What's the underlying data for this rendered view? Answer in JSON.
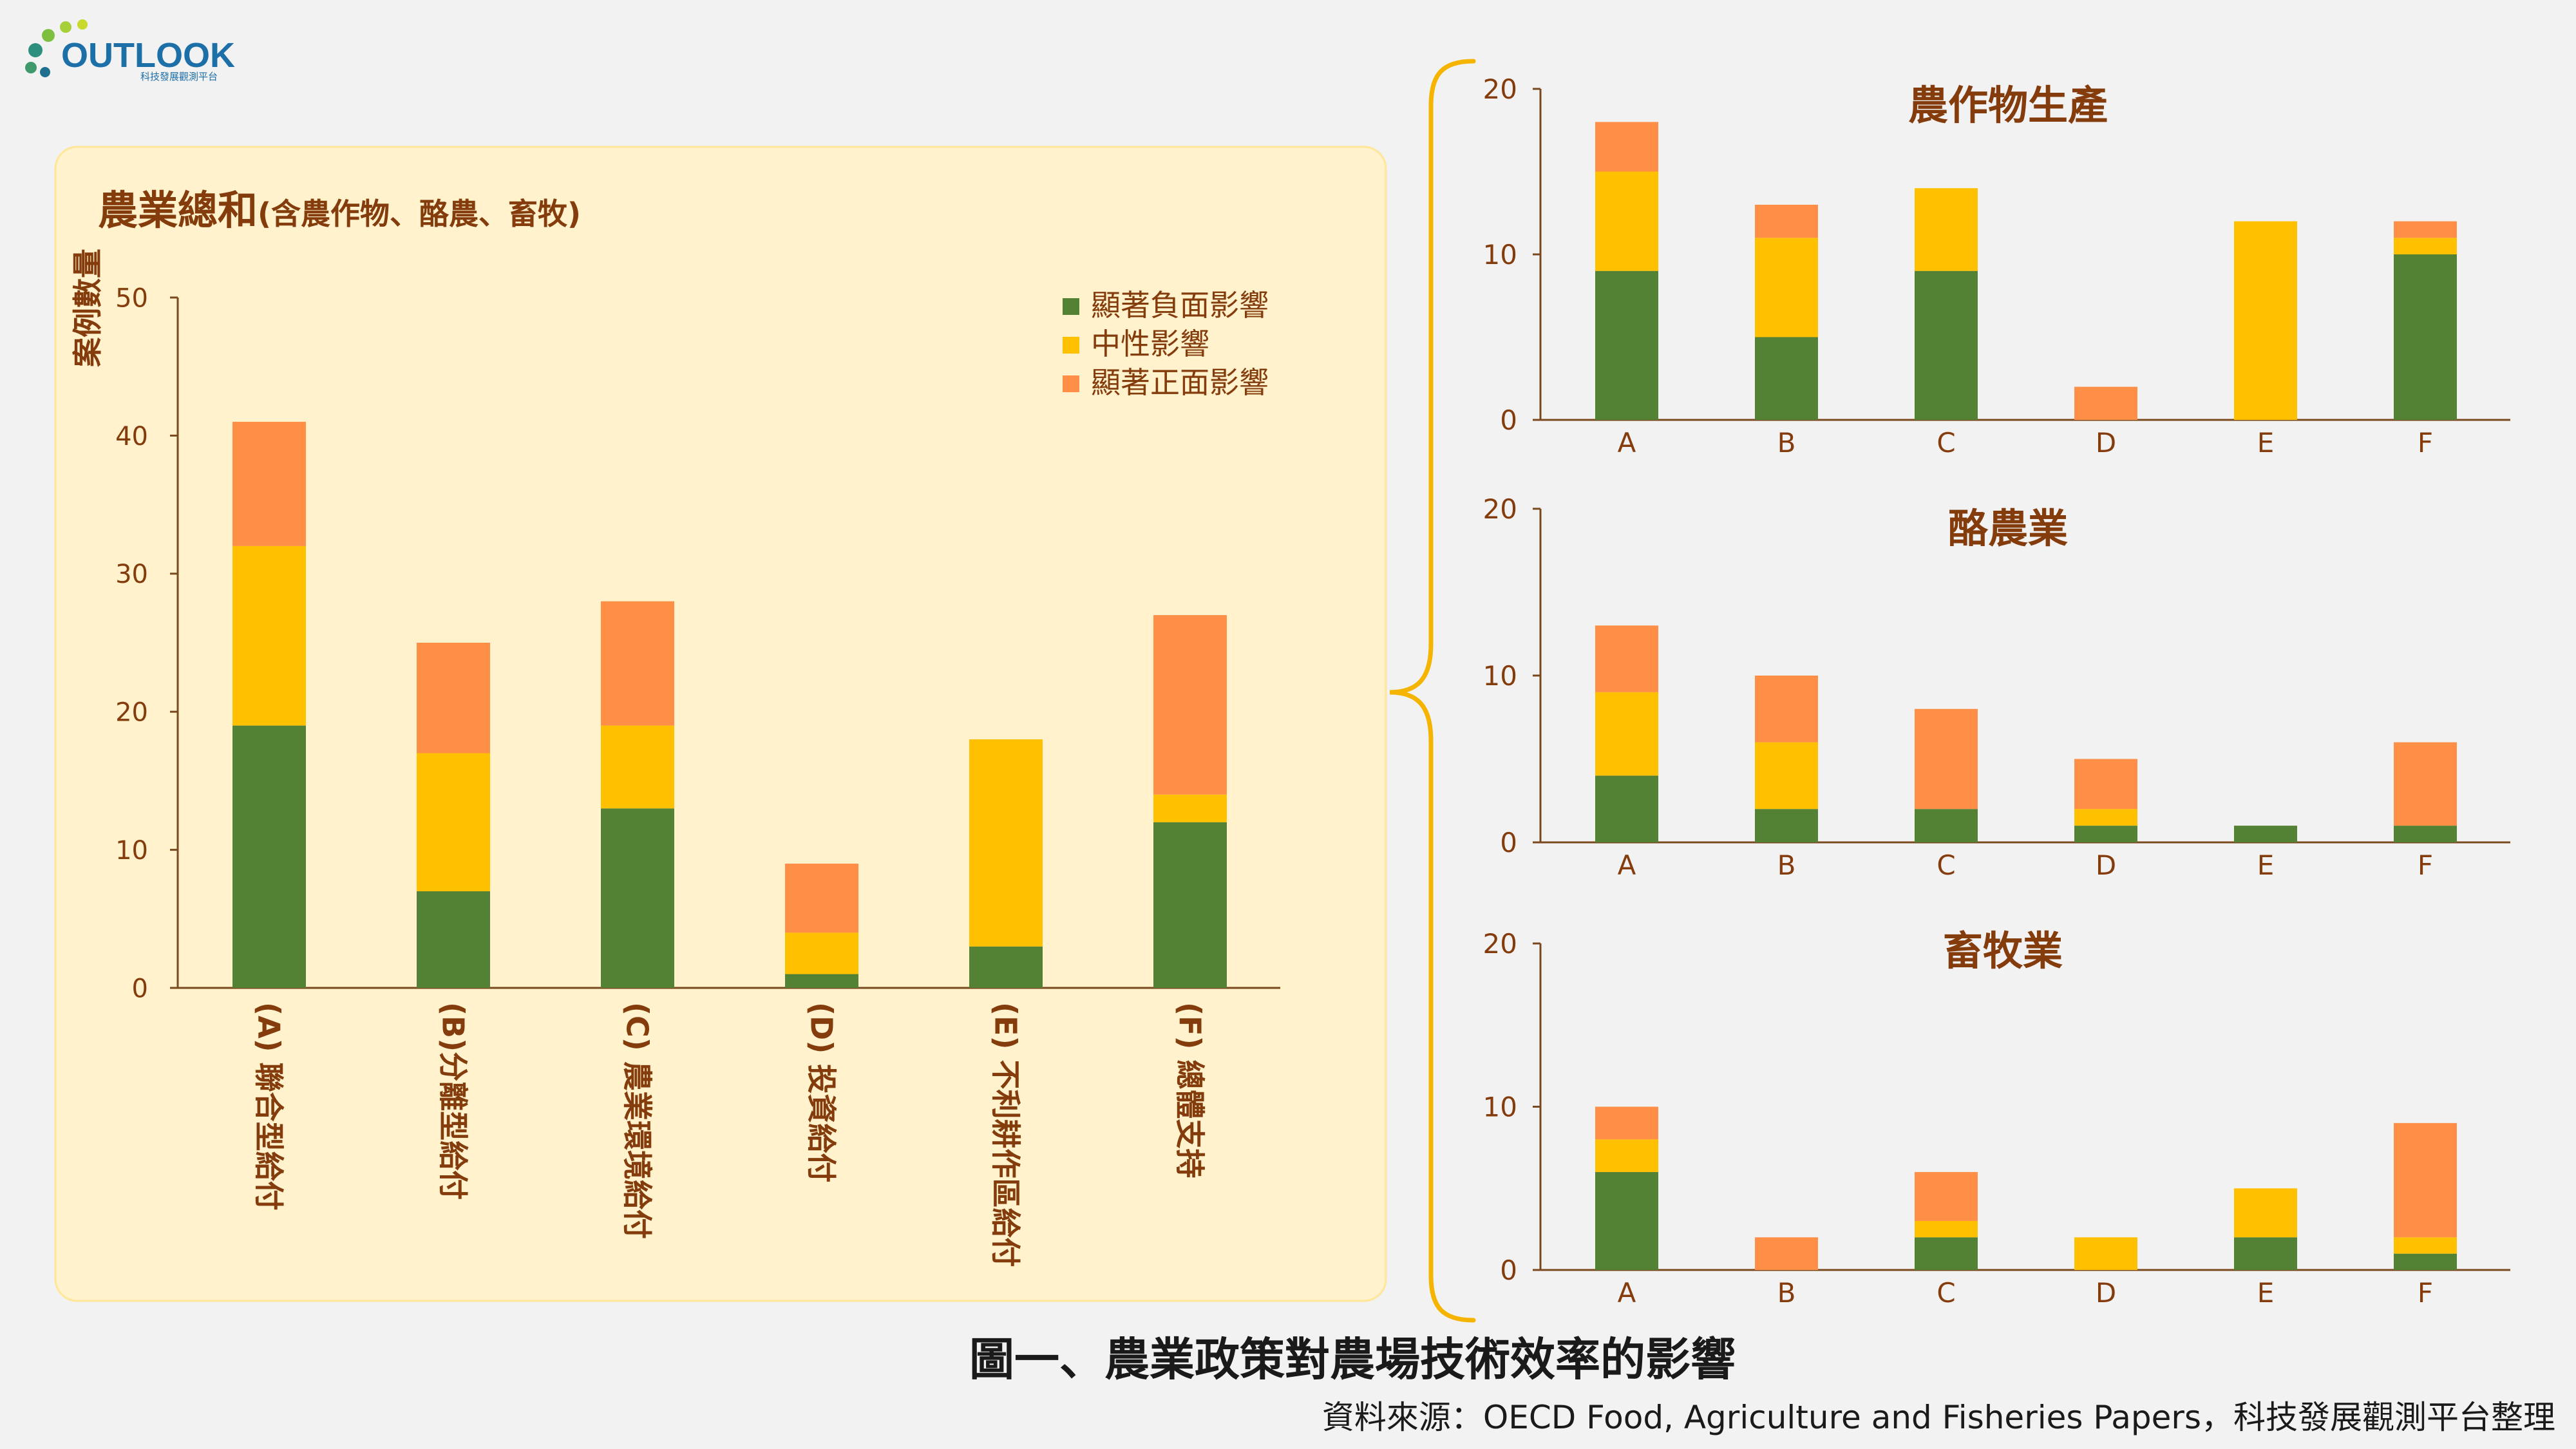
{
  "logo": {
    "text": "OUTLOOK",
    "subtitle": "科技發展觀測平台"
  },
  "colors": {
    "negative": "#548235",
    "neutral": "#ffc000",
    "positive": "#ff8f47",
    "axis": "#7a4a1e",
    "text_brown": "#843c0c",
    "panel_bg": "#fff2cc",
    "panel_border": "#ffe699",
    "brace": "#f4b400"
  },
  "figure_caption": "圖一、農業政策對農場技術效率的影響",
  "source_note": "資料來源：OECD Food, Agriculture and Fisheries Papers，科技發展觀測平台整理",
  "chart_data": [
    {
      "type": "bar",
      "stacked": true,
      "title": "農業總和",
      "subtitle": "(含農作物、酪農、畜牧)",
      "ylabel": "案例數量",
      "ylim": [
        0,
        50
      ],
      "yticks": [
        0,
        10,
        20,
        30,
        40,
        50
      ],
      "categories": [
        "(A) 聯合型給付",
        "(B)分離型給付",
        "(C) 農業環境給付",
        "(D) 投資給付",
        "(E) 不利耕作區給付",
        "(F) 總體支持"
      ],
      "legend": [
        "顯著負面影響",
        "中性影響",
        "顯著正面影響"
      ],
      "series": [
        {
          "name": "顯著負面影響",
          "values": [
            19,
            7,
            13,
            1,
            3,
            12
          ]
        },
        {
          "name": "中性影響",
          "values": [
            13,
            10,
            6,
            3,
            15,
            2
          ]
        },
        {
          "name": "顯著正面影響",
          "values": [
            9,
            8,
            9,
            5,
            0,
            13
          ]
        }
      ]
    },
    {
      "type": "bar",
      "stacked": true,
      "title": "農作物生產",
      "ylim": [
        0,
        20
      ],
      "yticks": [
        0,
        10,
        20
      ],
      "categories": [
        "A",
        "B",
        "C",
        "D",
        "E",
        "F"
      ],
      "series": [
        {
          "name": "顯著負面影響",
          "values": [
            9,
            5,
            9,
            0,
            0,
            10
          ]
        },
        {
          "name": "中性影響",
          "values": [
            6,
            6,
            5,
            0,
            12,
            1
          ]
        },
        {
          "name": "顯著正面影響",
          "values": [
            3,
            2,
            0,
            2,
            0,
            1
          ]
        }
      ]
    },
    {
      "type": "bar",
      "stacked": true,
      "title": "酪農業",
      "ylim": [
        0,
        20
      ],
      "yticks": [
        0,
        10,
        20
      ],
      "categories": [
        "A",
        "B",
        "C",
        "D",
        "E",
        "F"
      ],
      "series": [
        {
          "name": "顯著負面影響",
          "values": [
            4,
            2,
            2,
            1,
            1,
            1
          ]
        },
        {
          "name": "中性影響",
          "values": [
            5,
            4,
            0,
            1,
            0,
            0
          ]
        },
        {
          "name": "顯著正面影響",
          "values": [
            4,
            4,
            6,
            3,
            0,
            5
          ]
        }
      ]
    },
    {
      "type": "bar",
      "stacked": true,
      "title": "畜牧業",
      "ylim": [
        0,
        20
      ],
      "yticks": [
        0,
        10,
        20
      ],
      "categories": [
        "A",
        "B",
        "C",
        "D",
        "E",
        "F"
      ],
      "series": [
        {
          "name": "顯著負面影響",
          "values": [
            6,
            0,
            2,
            0,
            2,
            1
          ]
        },
        {
          "name": "中性影響",
          "values": [
            2,
            0,
            1,
            2,
            3,
            1
          ]
        },
        {
          "name": "顯著正面影響",
          "values": [
            2,
            2,
            3,
            0,
            0,
            7
          ]
        }
      ]
    }
  ]
}
